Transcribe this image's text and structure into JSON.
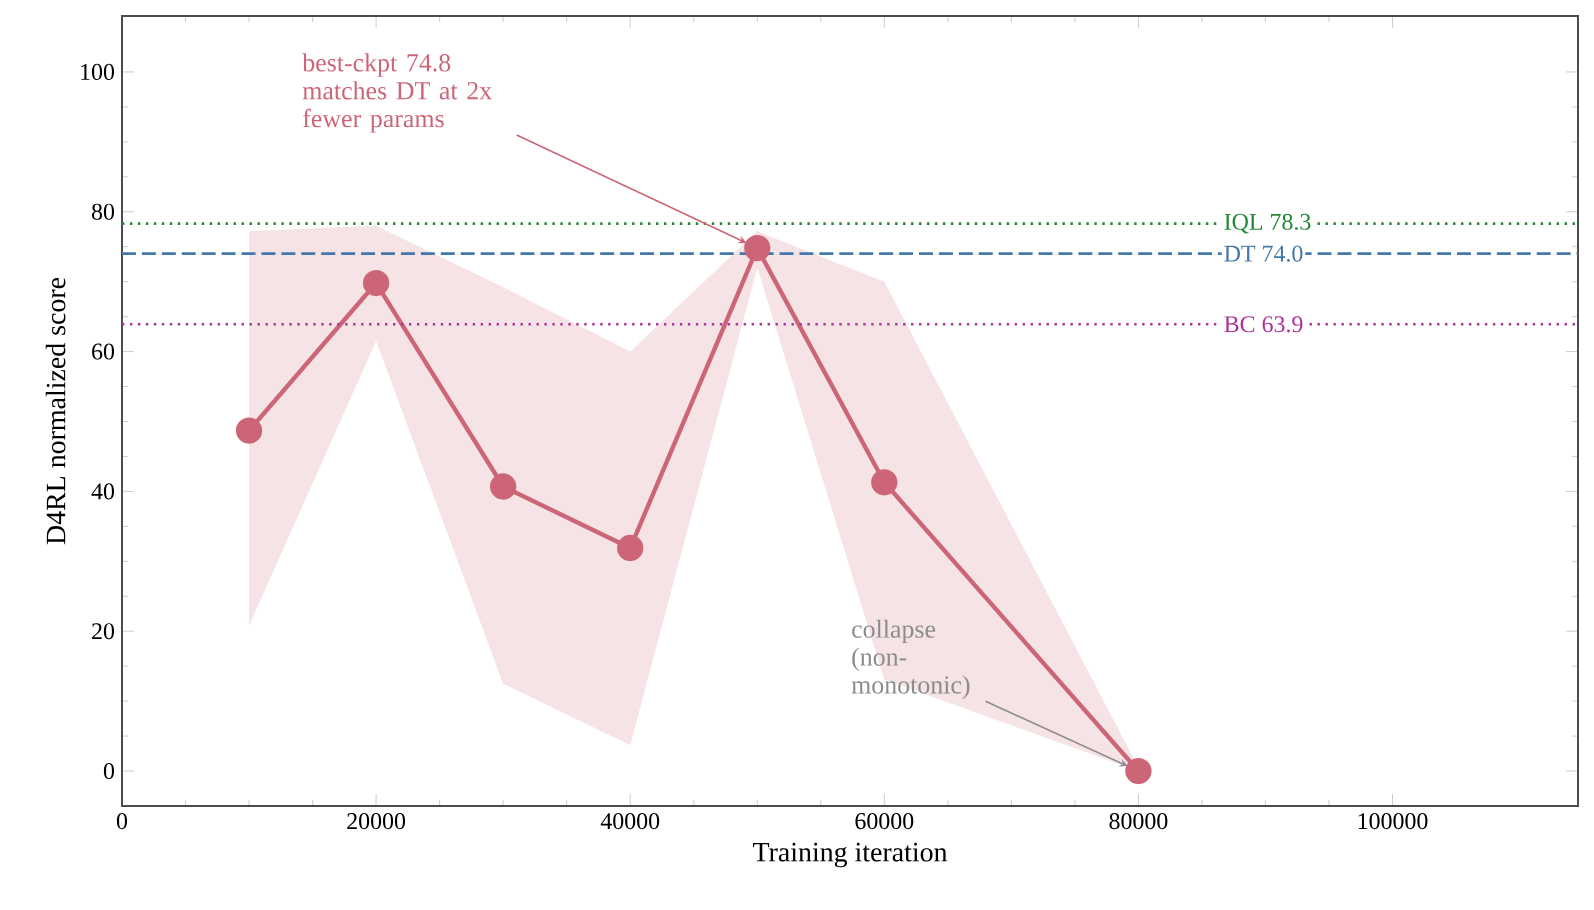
{
  "chart_data": {
    "type": "line",
    "xlabel": "Training iteration",
    "ylabel": "D4RL normalized score",
    "x": [
      10000,
      20000,
      30000,
      40000,
      50000,
      60000,
      80000
    ],
    "series": [
      {
        "color": "#cc6677",
        "values": [
          48.7,
          69.8,
          40.7,
          31.9,
          74.8,
          41.3,
          0
        ],
        "lower": [
          20.8,
          61.5,
          12.5,
          3.7,
          72,
          13.1,
          0
        ],
        "upper": [
          77.2,
          78,
          69.2,
          60,
          77.2,
          70,
          0.5
        ]
      }
    ],
    "marker": "circle",
    "line_style": "solid",
    "xlim": [
      0,
      114600
    ],
    "ylim": [
      -5,
      108
    ],
    "xticks": [
      0,
      20000,
      40000,
      60000,
      80000,
      100000
    ],
    "yticks": [
      0,
      20,
      40,
      60,
      80,
      100
    ],
    "ref_lines": [
      {
        "axis": "y",
        "value": 78.3,
        "label": "IQL  78.3",
        "color": "#228833",
        "line_style": "dotted"
      },
      {
        "axis": "y",
        "value": 74.0,
        "label": "DT  74.0",
        "color": "#4477aa",
        "line_style": "dashed"
      },
      {
        "axis": "y",
        "value": 63.9,
        "label": "BC  63.9",
        "color": "#aa3399",
        "line_style": "dotted"
      }
    ],
    "annotations": [
      {
        "text": "best-ckpt 74.8 matches DT at 2x fewer params",
        "x": 50000,
        "y": 74.8
      },
      {
        "text": "collapse (non-monotonic)",
        "x": 80000,
        "y": 0
      }
    ]
  }
}
